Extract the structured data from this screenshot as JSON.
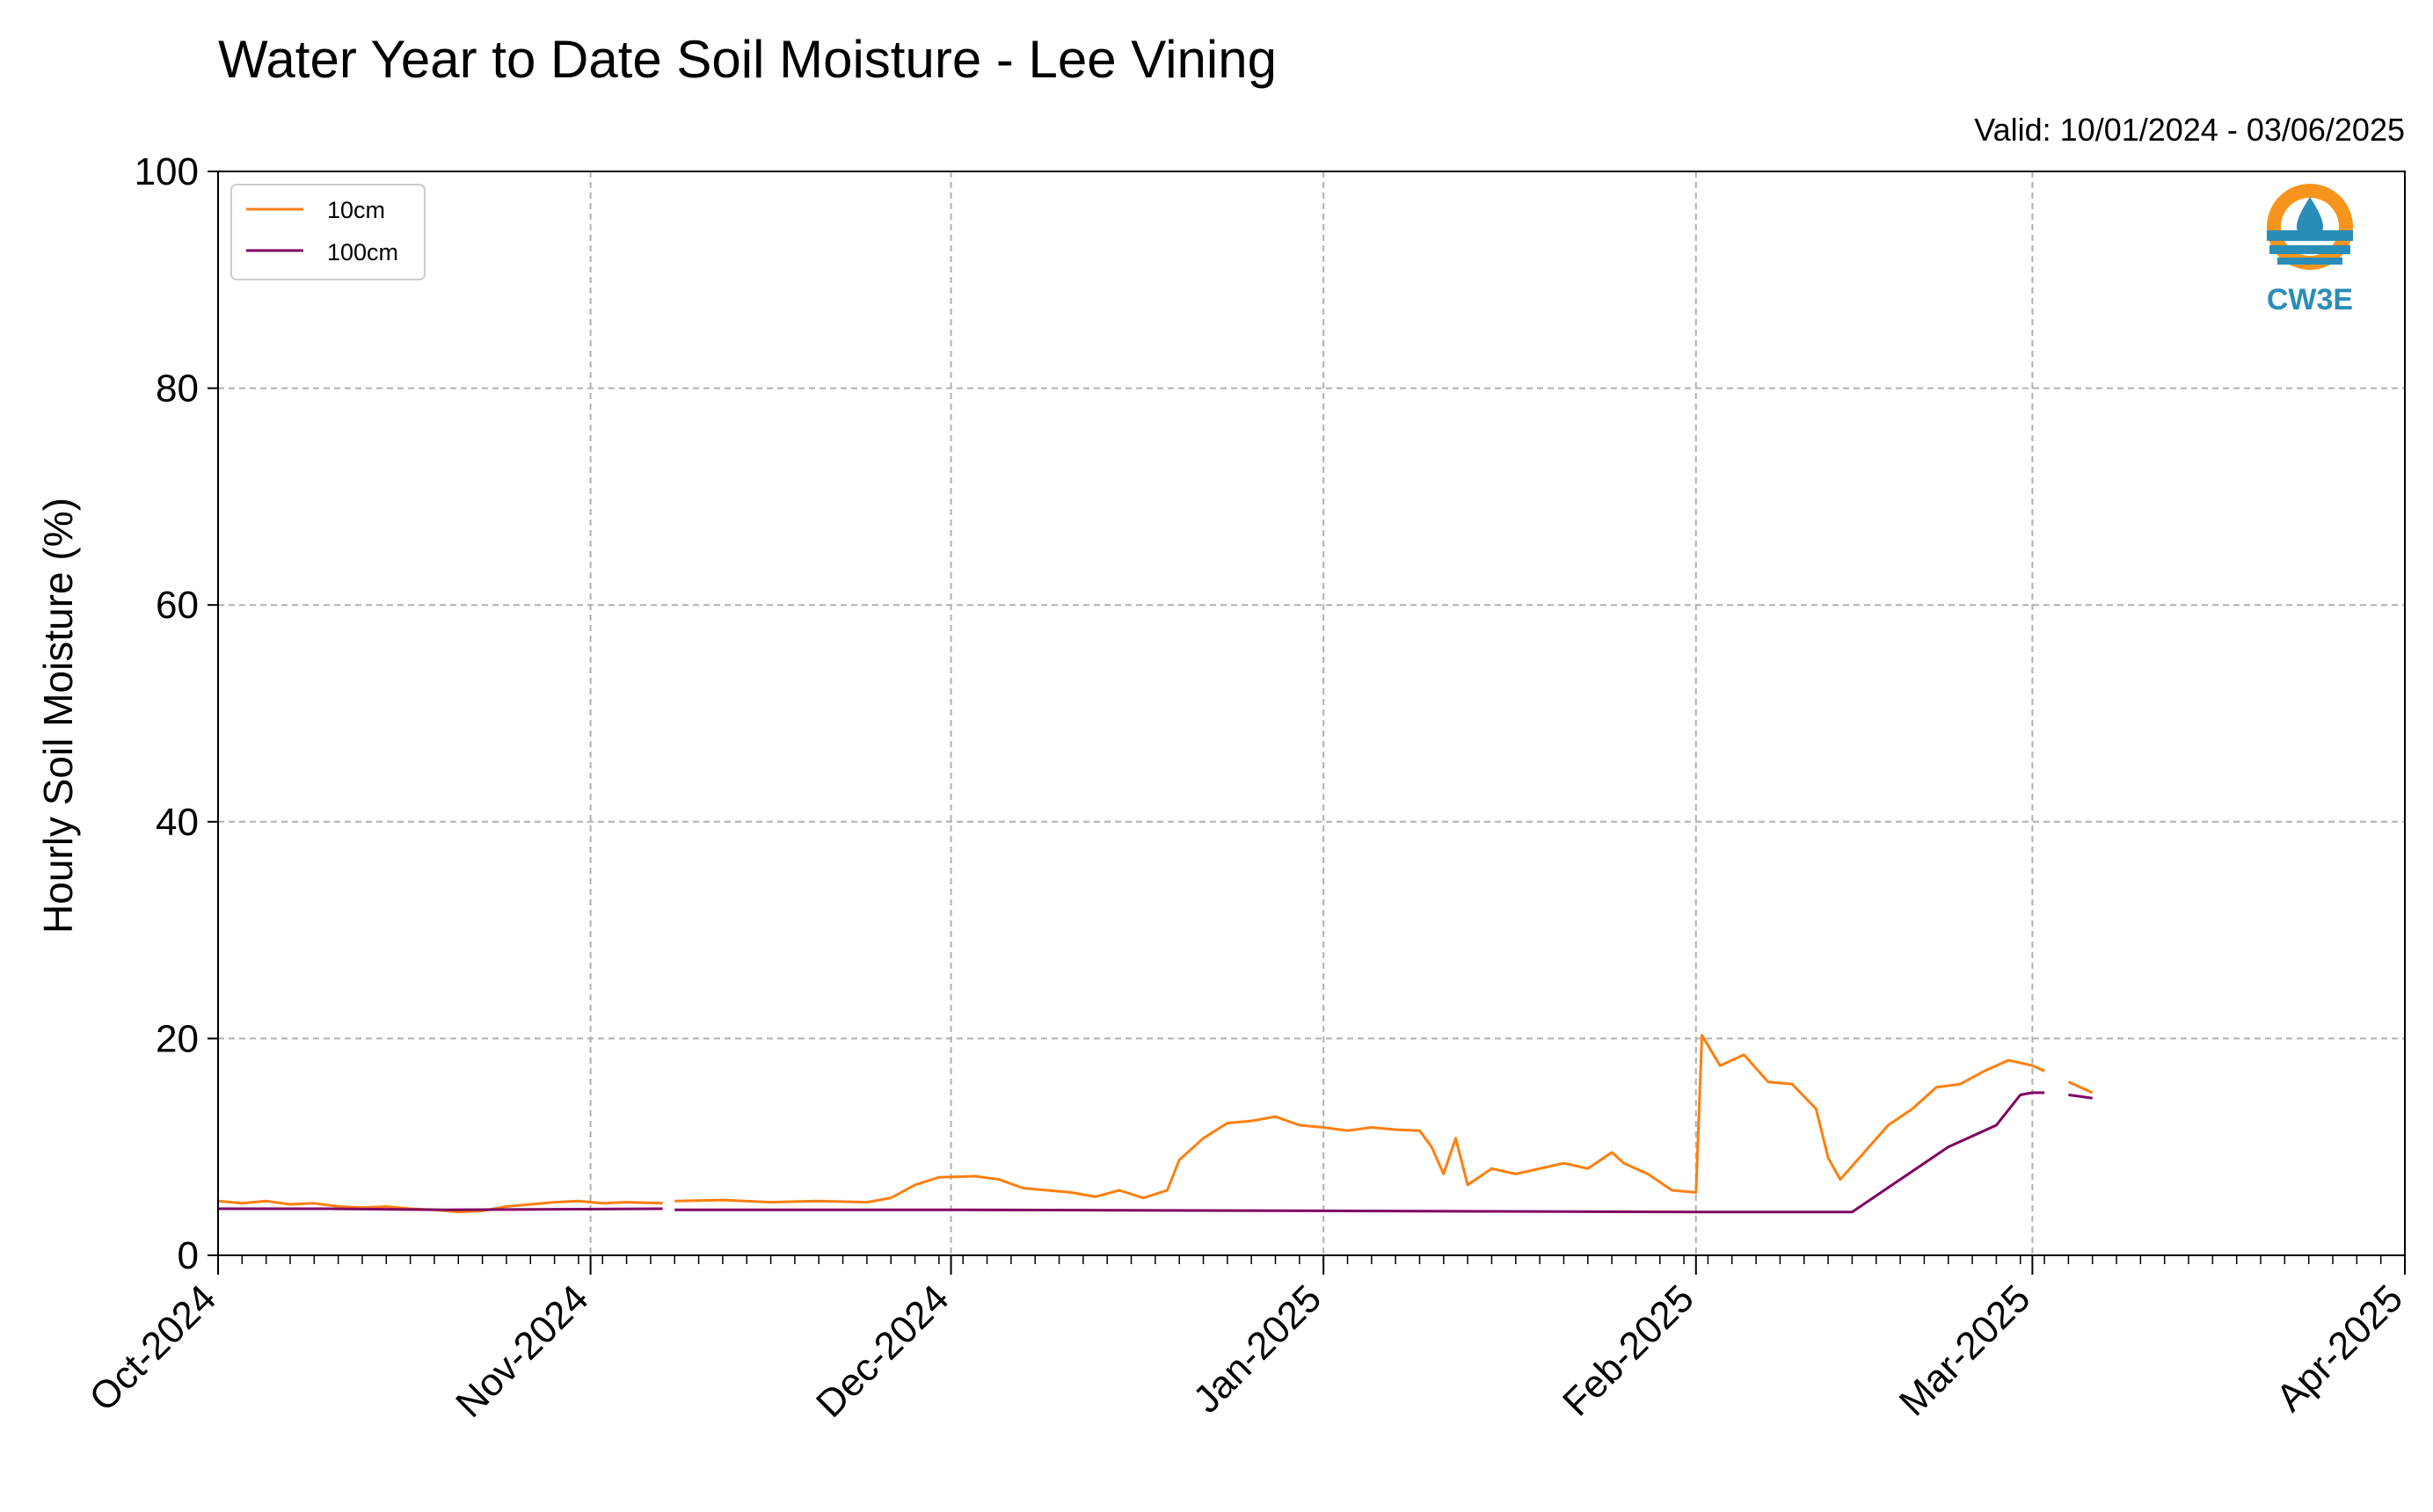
{
  "chart_data": {
    "type": "line",
    "title": "Water Year to Date Soil Moisture - Lee Vining",
    "subtitle": "Valid: 10/01/2024 - 03/06/2025",
    "xlabel": "",
    "ylabel": "Hourly Soil Moisture (%)",
    "ylim": [
      0,
      100
    ],
    "yticks": [
      0,
      20,
      40,
      60,
      80,
      100
    ],
    "xlim": [
      "2024-10-01",
      "2025-04-01"
    ],
    "xticks": [
      {
        "date": "2024-10-01",
        "label": "Oct-2024"
      },
      {
        "date": "2024-11-01",
        "label": "Nov-2024"
      },
      {
        "date": "2024-12-01",
        "label": "Dec-2024"
      },
      {
        "date": "2025-01-01",
        "label": "Jan-2025"
      },
      {
        "date": "2025-02-01",
        "label": "Feb-2025"
      },
      {
        "date": "2025-03-01",
        "label": "Mar-2025"
      },
      {
        "date": "2025-04-01",
        "label": "Apr-2025"
      }
    ],
    "grid": true,
    "legend_position": "top-left",
    "series": [
      {
        "name": "10cm",
        "color": "#ff7f0e",
        "segments": [
          [
            [
              "2024-10-01",
              5.0
            ],
            [
              "2024-10-03",
              4.8
            ],
            [
              "2024-10-05",
              5.0
            ],
            [
              "2024-10-07",
              4.7
            ],
            [
              "2024-10-09",
              4.8
            ],
            [
              "2024-10-11",
              4.5
            ],
            [
              "2024-10-13",
              4.4
            ],
            [
              "2024-10-15",
              4.5
            ],
            [
              "2024-10-17",
              4.3
            ],
            [
              "2024-10-19",
              4.2
            ],
            [
              "2024-10-21",
              4.0
            ],
            [
              "2024-10-23",
              4.1
            ],
            [
              "2024-10-25",
              4.5
            ],
            [
              "2024-10-27",
              4.7
            ],
            [
              "2024-10-29",
              4.9
            ],
            [
              "2024-10-31",
              5.0
            ],
            [
              "2024-11-02",
              4.8
            ],
            [
              "2024-11-04",
              4.9
            ],
            [
              "2024-11-07",
              4.8
            ]
          ],
          [
            [
              "2024-11-08",
              5.0
            ],
            [
              "2024-11-12",
              5.1
            ],
            [
              "2024-11-16",
              4.9
            ],
            [
              "2024-11-20",
              5.0
            ],
            [
              "2024-11-24",
              4.9
            ],
            [
              "2024-11-26",
              5.3
            ],
            [
              "2024-11-28",
              6.5
            ],
            [
              "2024-11-30",
              7.2
            ],
            [
              "2024-12-03",
              7.3
            ],
            [
              "2024-12-05",
              7.0
            ],
            [
              "2024-12-07",
              6.2
            ],
            [
              "2024-12-09",
              6.0
            ],
            [
              "2024-12-11",
              5.8
            ],
            [
              "2024-12-13",
              5.4
            ],
            [
              "2024-12-15",
              6.0
            ],
            [
              "2024-12-17",
              5.3
            ],
            [
              "2024-12-19",
              6.0
            ],
            [
              "2024-12-20",
              8.8
            ],
            [
              "2024-12-22",
              10.8
            ],
            [
              "2024-12-24",
              12.2
            ],
            [
              "2024-12-26",
              12.4
            ],
            [
              "2024-12-28",
              12.8
            ],
            [
              "2024-12-30",
              12.0
            ],
            [
              "2025-01-01",
              11.8
            ],
            [
              "2025-01-03",
              11.5
            ],
            [
              "2025-01-05",
              11.8
            ],
            [
              "2025-01-07",
              11.6
            ],
            [
              "2025-01-09",
              11.5
            ],
            [
              "2025-01-10",
              10.0
            ],
            [
              "2025-01-11",
              7.5
            ],
            [
              "2025-01-12",
              10.8
            ],
            [
              "2025-01-13",
              6.5
            ],
            [
              "2025-01-15",
              8.0
            ],
            [
              "2025-01-17",
              7.5
            ],
            [
              "2025-01-19",
              8.0
            ],
            [
              "2025-01-21",
              8.5
            ],
            [
              "2025-01-23",
              8.0
            ],
            [
              "2025-01-25",
              9.5
            ],
            [
              "2025-01-26",
              8.5
            ],
            [
              "2025-01-28",
              7.5
            ],
            [
              "2025-01-30",
              6.0
            ],
            [
              "2025-02-01",
              5.8
            ],
            [
              "2025-02-01T12:00",
              20.3
            ],
            [
              "2025-02-03",
              17.5
            ],
            [
              "2025-02-05",
              18.5
            ],
            [
              "2025-02-07",
              16.0
            ],
            [
              "2025-02-09",
              15.8
            ],
            [
              "2025-02-11",
              13.5
            ],
            [
              "2025-02-12",
              9.0
            ],
            [
              "2025-02-13",
              7.0
            ],
            [
              "2025-02-15",
              9.5
            ],
            [
              "2025-02-17",
              12.0
            ],
            [
              "2025-02-19",
              13.5
            ],
            [
              "2025-02-21",
              15.5
            ],
            [
              "2025-02-23",
              15.8
            ],
            [
              "2025-02-25",
              17.0
            ],
            [
              "2025-02-27",
              18.0
            ],
            [
              "2025-03-01",
              17.5
            ],
            [
              "2025-03-02",
              17.0
            ]
          ],
          [
            [
              "2025-03-04",
              16.0
            ],
            [
              "2025-03-05",
              15.5
            ],
            [
              "2025-03-06",
              15.0
            ]
          ]
        ]
      },
      {
        "name": "100cm",
        "color": "#800060",
        "segments": [
          [
            [
              "2024-10-01",
              4.3
            ],
            [
              "2024-10-10",
              4.3
            ],
            [
              "2024-10-20",
              4.2
            ],
            [
              "2024-11-07",
              4.3
            ]
          ],
          [
            [
              "2024-11-08",
              4.2
            ],
            [
              "2024-12-01",
              4.2
            ],
            [
              "2025-01-01",
              4.1
            ],
            [
              "2025-02-01",
              4.0
            ],
            [
              "2025-02-13",
              4.0
            ],
            [
              "2025-02-14",
              4.0
            ],
            [
              "2025-02-16",
              5.5
            ],
            [
              "2025-02-18",
              7.0
            ],
            [
              "2025-02-20",
              8.5
            ],
            [
              "2025-02-22",
              10.0
            ],
            [
              "2025-02-24",
              11.0
            ],
            [
              "2025-02-26",
              12.0
            ],
            [
              "2025-02-28",
              14.8
            ],
            [
              "2025-03-01",
              15.0
            ],
            [
              "2025-03-02",
              15.0
            ]
          ],
          [
            [
              "2025-03-04",
              14.8
            ],
            [
              "2025-03-06",
              14.5
            ]
          ]
        ]
      }
    ]
  },
  "logo": {
    "text": "CW3E",
    "color_orange": "#f7941d",
    "color_blue": "#2a8db8"
  }
}
